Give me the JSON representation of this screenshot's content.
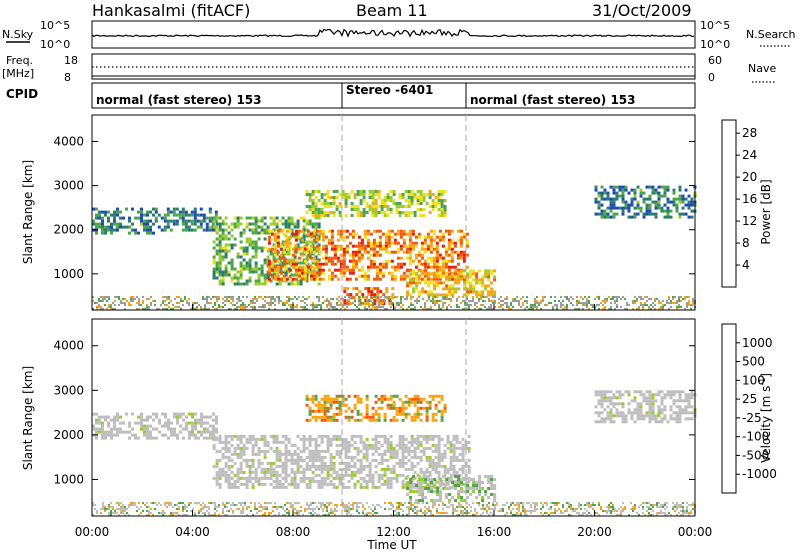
{
  "header": {
    "station": "Hankasalmi (fitACF)",
    "beam": "Beam 11",
    "date": "31/Oct/2009"
  },
  "left_labels": {
    "nsky": "N.Sky",
    "freq": "Freq.",
    "freq_unit": "[MHz]",
    "cpid": "CPID"
  },
  "right_labels": {
    "nsearch": "N.Search",
    "nave": "Nave"
  },
  "noise_axis": {
    "top": "10^5",
    "bottom": "10^0"
  },
  "freq_axis": {
    "top": "18",
    "bottom": "8"
  },
  "nave_axis": {
    "top": "60",
    "bottom": "0"
  },
  "cpid_segments": [
    "normal (fast stereo) 153",
    "Stereo -6401",
    "normal (fast stereo) 153"
  ],
  "x_axis": {
    "label": "Time UT",
    "ticks": [
      "00:00",
      "04:00",
      "08:00",
      "12:00",
      "16:00",
      "20:00",
      "00:00"
    ],
    "range_hours": [
      0,
      24
    ]
  },
  "chart_data": [
    {
      "type": "heatmap",
      "name": "power",
      "ylabel": "Slant Range [km]",
      "yticks": [
        "1000",
        "2000",
        "3000",
        "4000"
      ],
      "ylim": [
        180,
        4600
      ],
      "xlim": [
        0,
        24
      ],
      "colorbar": {
        "label": "Power [dB]",
        "ticks": [
          "4",
          "8",
          "12",
          "16",
          "20",
          "24",
          "28"
        ],
        "range": [
          0,
          30
        ],
        "colors": [
          "#1a14e0",
          "#1f4ab8",
          "#2c7d6e",
          "#4fa64a",
          "#9ccc2c",
          "#f0e01e",
          "#f7a412",
          "#f05a0c",
          "#e81c0a"
        ]
      },
      "echo_regions": [
        {
          "t_start": 0.0,
          "t_end": 2.5,
          "range_low": 1900,
          "range_high": 2500,
          "level": 8
        },
        {
          "t_start": 2.5,
          "t_end": 5.0,
          "range_low": 2000,
          "range_high": 2500,
          "level": 8
        },
        {
          "t_start": 4.8,
          "t_end": 9.0,
          "range_low": 800,
          "range_high": 2300,
          "level": 12
        },
        {
          "t_start": 7.0,
          "t_end": 15.0,
          "range_low": 900,
          "range_high": 2000,
          "level": 24
        },
        {
          "t_start": 8.5,
          "t_end": 14.0,
          "range_low": 2300,
          "range_high": 2900,
          "level": 16
        },
        {
          "t_start": 10.0,
          "t_end": 12.0,
          "range_low": 300,
          "range_high": 700,
          "level": 26
        },
        {
          "t_start": 12.5,
          "t_end": 16.0,
          "range_low": 500,
          "range_high": 1100,
          "level": 20
        },
        {
          "t_start": 20.0,
          "t_end": 24.0,
          "range_low": 2300,
          "range_high": 3000,
          "level": 8
        }
      ]
    },
    {
      "type": "heatmap",
      "name": "velocity",
      "ylabel": "Slant Range [km]",
      "yticks": [
        "1000",
        "2000",
        "3000",
        "4000"
      ],
      "ylim": [
        180,
        4600
      ],
      "xlim": [
        0,
        24
      ],
      "colorbar": {
        "label": "Velocity [m s^-1]",
        "ticks": [
          "1000",
          "500",
          "100",
          "25",
          "-25",
          "-100",
          "-500",
          "-1000"
        ],
        "colors": [
          "#1a14e0",
          "#1f4ab8",
          "#2c7d6e",
          "#4fa64a",
          "#9ccc2c",
          "#bebebe",
          "#f0e01e",
          "#f7a412",
          "#f05a0c",
          "#e81c0a"
        ]
      },
      "echo_regions": [
        {
          "t_start": 0.0,
          "t_end": 5.0,
          "range_low": 1900,
          "range_high": 2500,
          "level": "ground"
        },
        {
          "t_start": 4.8,
          "t_end": 15.0,
          "range_low": 800,
          "range_high": 2000,
          "level": "ground"
        },
        {
          "t_start": 8.5,
          "t_end": 14.0,
          "range_low": 2300,
          "range_high": 2900,
          "level": "-100"
        },
        {
          "t_start": 12.5,
          "t_end": 16.0,
          "range_low": 500,
          "range_high": 1100,
          "level": "25"
        },
        {
          "t_start": 20.0,
          "t_end": 24.0,
          "range_low": 2300,
          "range_high": 3000,
          "level": "ground"
        }
      ]
    }
  ]
}
